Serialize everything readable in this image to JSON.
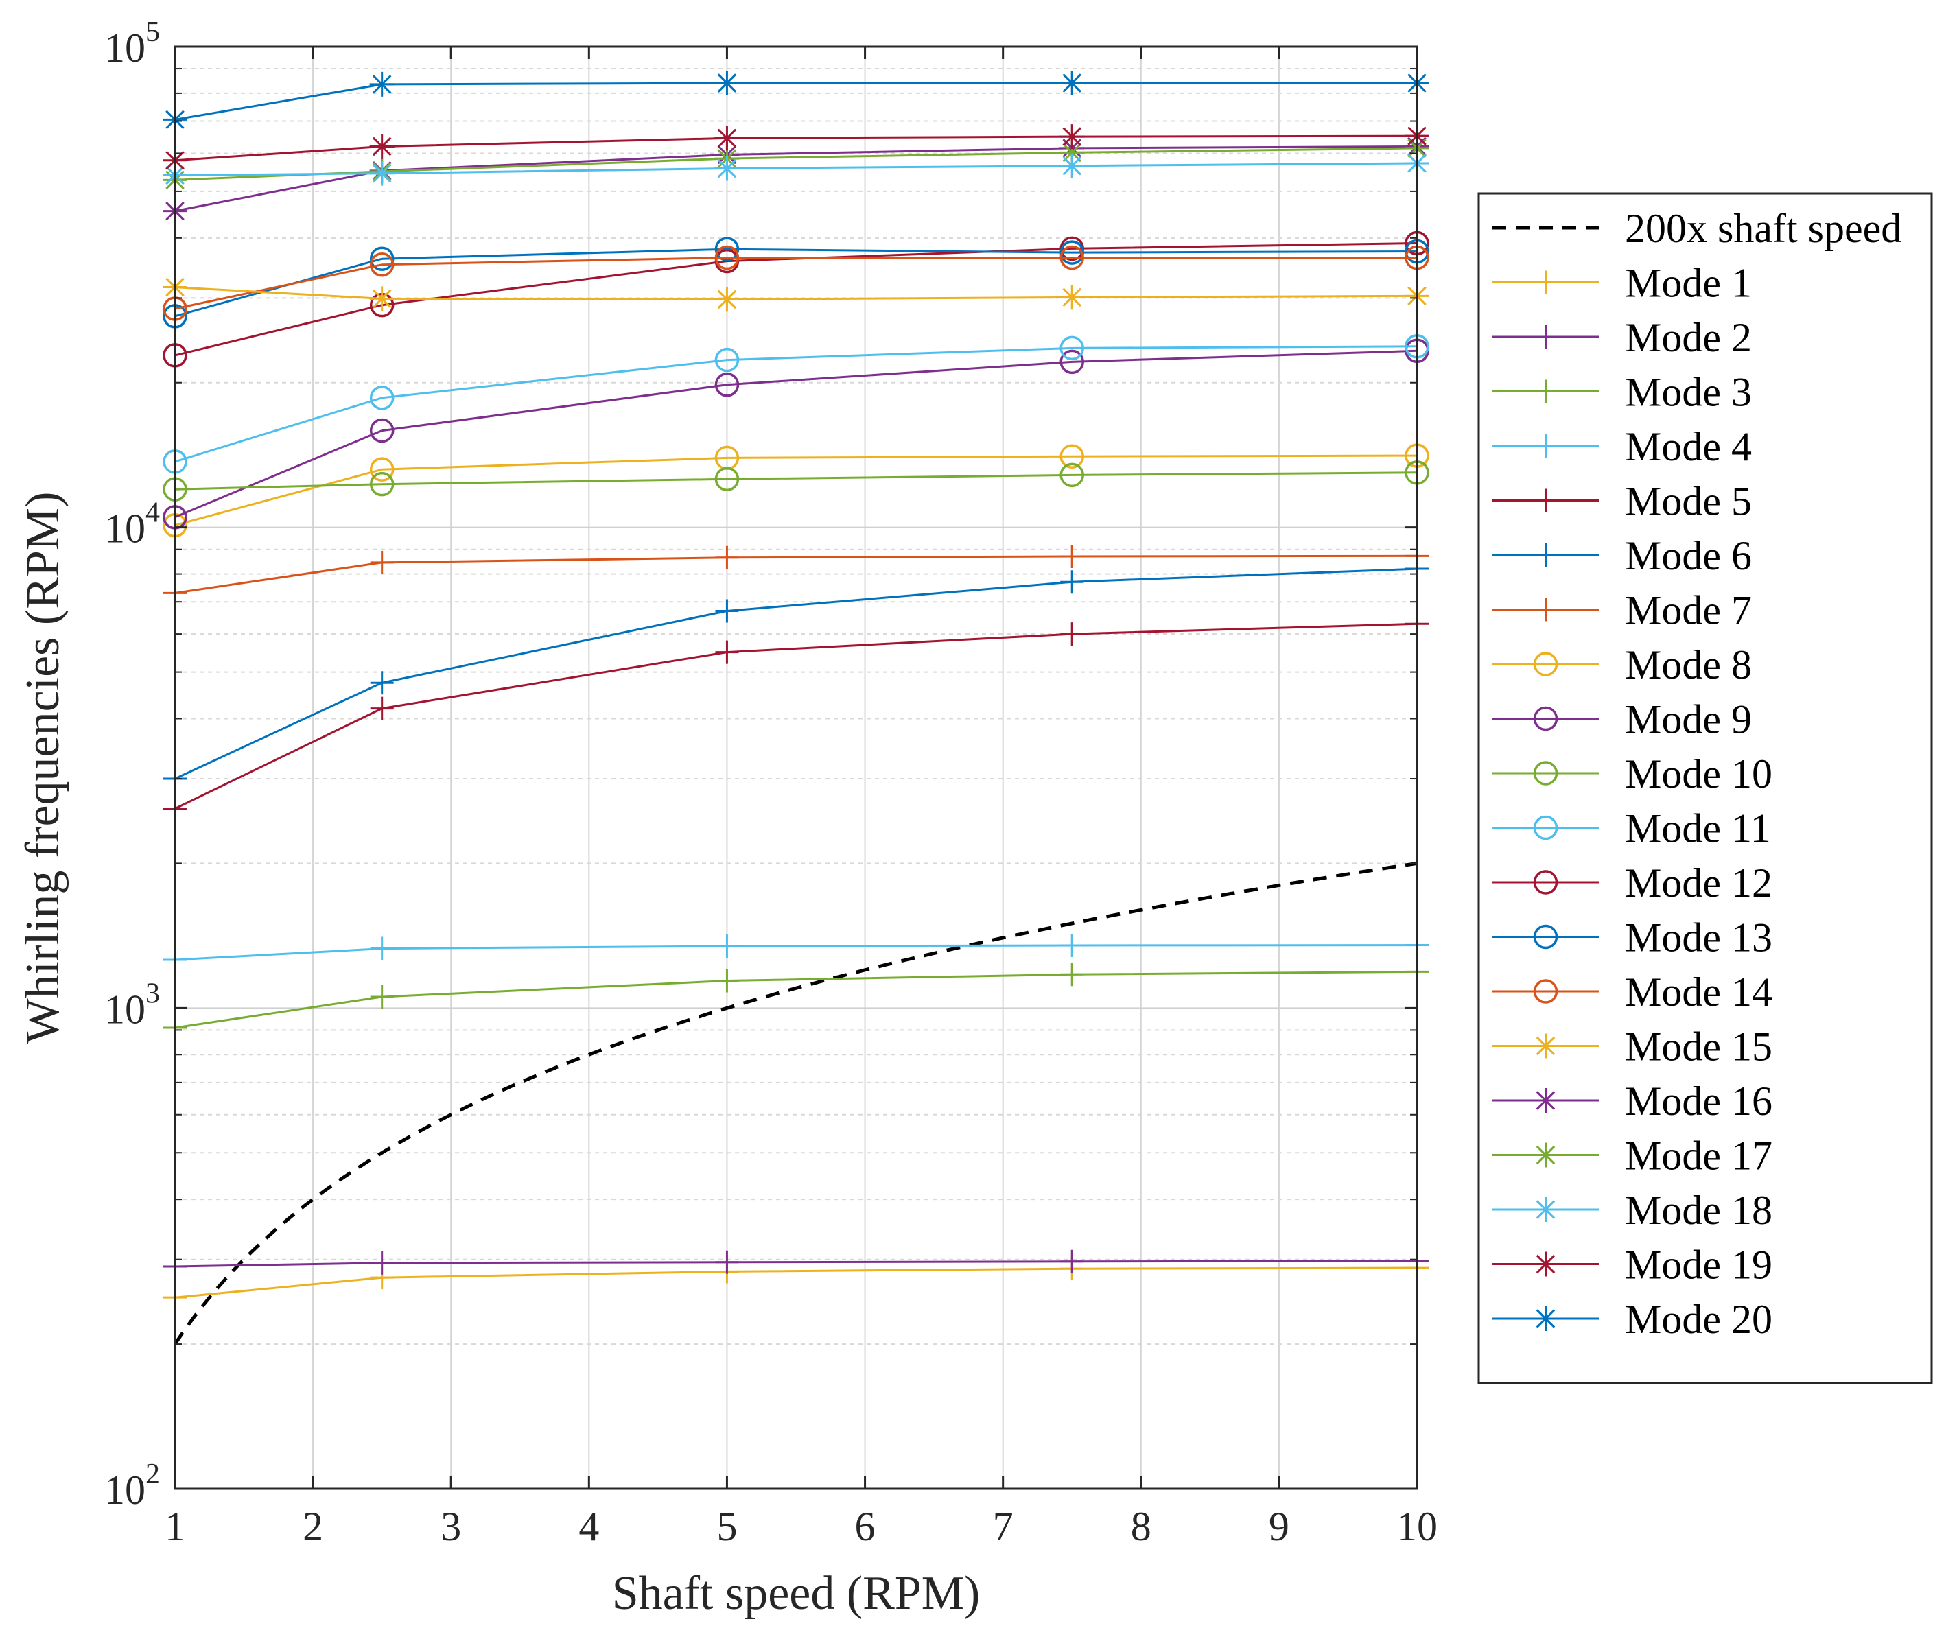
{
  "chart_data": {
    "type": "line",
    "x": [
      1,
      2.5,
      5,
      7.5,
      10
    ],
    "xlabel": "Shaft speed (RPM)",
    "ylabel": "Whirling frequencies (RPM)",
    "xlim": [
      1,
      10
    ],
    "ylim": [
      100,
      100000
    ],
    "yscale": "log",
    "grid": true,
    "legend_position": "right",
    "x_ticks": [
      "1",
      "2",
      "3",
      "4",
      "5",
      "6",
      "7",
      "8",
      "9",
      "10"
    ],
    "y_ticks": [
      {
        "base": "10",
        "exp": "2"
      },
      {
        "base": "10",
        "exp": "3"
      },
      {
        "base": "10",
        "exp": "4"
      },
      {
        "base": "10",
        "exp": "5"
      }
    ],
    "reference": {
      "name": "200x shaft speed",
      "factor": 200,
      "style": "dashed",
      "color": "#000000"
    },
    "series": [
      {
        "name": "Mode 1",
        "marker": "plus",
        "color": "#EDB120",
        "values": [
          250,
          275,
          283,
          287,
          288
        ]
      },
      {
        "name": "Mode 2",
        "marker": "plus",
        "color": "#7E2F8E",
        "values": [
          290,
          295,
          296,
          297,
          298
        ]
      },
      {
        "name": "Mode 3",
        "marker": "plus",
        "color": "#77AC30",
        "values": [
          910,
          1055,
          1140,
          1175,
          1190
        ]
      },
      {
        "name": "Mode 4",
        "marker": "plus",
        "color": "#4DBEEE",
        "values": [
          1260,
          1330,
          1345,
          1350,
          1352
        ]
      },
      {
        "name": "Mode 5",
        "marker": "plus",
        "color": "#A2142F",
        "values": [
          2600,
          4200,
          5500,
          6000,
          6300
        ]
      },
      {
        "name": "Mode 6",
        "marker": "plus",
        "color": "#0072BD",
        "values": [
          3000,
          4750,
          6700,
          7700,
          8200
        ]
      },
      {
        "name": "Mode 7",
        "marker": "plus",
        "color": "#D95319",
        "values": [
          7300,
          8450,
          8650,
          8700,
          8720
        ]
      },
      {
        "name": "Mode 8",
        "marker": "circle",
        "color": "#EDB120",
        "values": [
          10100,
          13200,
          13950,
          14050,
          14100
        ]
      },
      {
        "name": "Mode 9",
        "marker": "circle",
        "color": "#7E2F8E",
        "values": [
          10500,
          15900,
          19800,
          22100,
          23300
        ]
      },
      {
        "name": "Mode 10",
        "marker": "circle",
        "color": "#77AC30",
        "values": [
          12000,
          12300,
          12600,
          12850,
          13000
        ]
      },
      {
        "name": "Mode 11",
        "marker": "circle",
        "color": "#4DBEEE",
        "values": [
          13700,
          18600,
          22300,
          23600,
          23800
        ]
      },
      {
        "name": "Mode 12",
        "marker": "circle",
        "color": "#A2142F",
        "values": [
          22800,
          29000,
          35800,
          38000,
          39000
        ]
      },
      {
        "name": "Mode 13",
        "marker": "circle",
        "color": "#0072BD",
        "values": [
          27500,
          36200,
          37900,
          37300,
          37500
        ]
      },
      {
        "name": "Mode 14",
        "marker": "circle",
        "color": "#D95319",
        "values": [
          28500,
          35200,
          36400,
          36400,
          36400
        ]
      },
      {
        "name": "Mode 15",
        "marker": "star",
        "color": "#EDB120",
        "values": [
          31600,
          29900,
          29800,
          30100,
          30300
        ]
      },
      {
        "name": "Mode 16",
        "marker": "star",
        "color": "#7E2F8E",
        "values": [
          45500,
          55200,
          59600,
          61500,
          62000
        ]
      },
      {
        "name": "Mode 17",
        "marker": "star",
        "color": "#77AC30",
        "values": [
          52800,
          55000,
          58500,
          60200,
          61500
        ]
      },
      {
        "name": "Mode 18",
        "marker": "star",
        "color": "#4DBEEE",
        "values": [
          54000,
          54500,
          55800,
          56500,
          57200
        ]
      },
      {
        "name": "Mode 19",
        "marker": "star",
        "color": "#A2142F",
        "values": [
          58000,
          62000,
          64500,
          65000,
          65200
        ]
      },
      {
        "name": "Mode 20",
        "marker": "star",
        "color": "#0072BD",
        "values": [
          70500,
          83500,
          84000,
          84000,
          84000
        ]
      }
    ]
  }
}
